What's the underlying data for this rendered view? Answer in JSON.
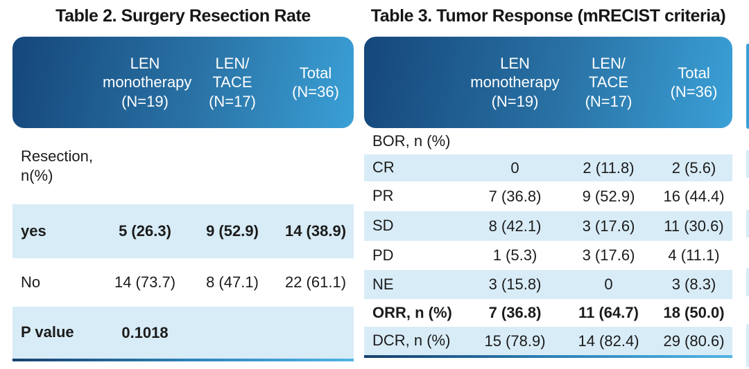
{
  "colors": {
    "header_gradient_start": "#15477b",
    "header_gradient_end": "#3aa0d6",
    "row_highlight": "#d8ecf7",
    "row_plain": "#ffffff",
    "bottom_border_start": "#16406f",
    "bottom_border_end": "#52b4e2",
    "header_text": "#ffffff",
    "body_text": "#1b1b1b"
  },
  "table2": {
    "title": "Table 2. Surgery Resection Rate",
    "col_headers": [
      "LEN\nmonotherapy\n(N=19)",
      "LEN/\nTACE\n(N=17)",
      "Total\n(N=36)"
    ],
    "rows": [
      {
        "label": "Resection,\nn(%)",
        "values": [
          "",
          "",
          ""
        ]
      },
      {
        "label": "yes",
        "values": [
          "5 (26.3)",
          "9 (52.9)",
          "14 (38.9)"
        ]
      },
      {
        "label": "No",
        "values": [
          "14 (73.7)",
          "8 (47.1)",
          "22 (61.1)"
        ]
      },
      {
        "label": "P value",
        "values": [
          "0.1018",
          "",
          ""
        ]
      }
    ]
  },
  "table3": {
    "title": "Table 3. Tumor Response (mRECIST criteria)",
    "col_headers": [
      "LEN\nmonotherapy\n(N=19)",
      "LEN/\nTACE\n(N=17)",
      "Total\n(N=36)"
    ],
    "rows": [
      {
        "label": "BOR, n (%)",
        "values": [
          "",
          "",
          ""
        ]
      },
      {
        "label": "CR",
        "values": [
          "0",
          "2 (11.8)",
          "2 (5.6)"
        ]
      },
      {
        "label": "PR",
        "values": [
          "7 (36.8)",
          "9 (52.9)",
          "16 (44.4)"
        ]
      },
      {
        "label": "SD",
        "values": [
          "8 (42.1)",
          "3 (17.6)",
          "11 (30.6)"
        ]
      },
      {
        "label": "PD",
        "values": [
          "1 (5.3)",
          "3 (17.6)",
          "4 (11.1)"
        ]
      },
      {
        "label": "NE",
        "values": [
          "3 (15.8)",
          "0",
          "3 (8.3)"
        ]
      },
      {
        "label": "ORR, n (%)",
        "values": [
          "7 (36.8)",
          "11 (64.7)",
          "18 (50.0)"
        ]
      },
      {
        "label": "DCR, n (%)",
        "values": [
          "15 (78.9)",
          "14 (82.4)",
          "29 (80.6)"
        ]
      }
    ]
  }
}
